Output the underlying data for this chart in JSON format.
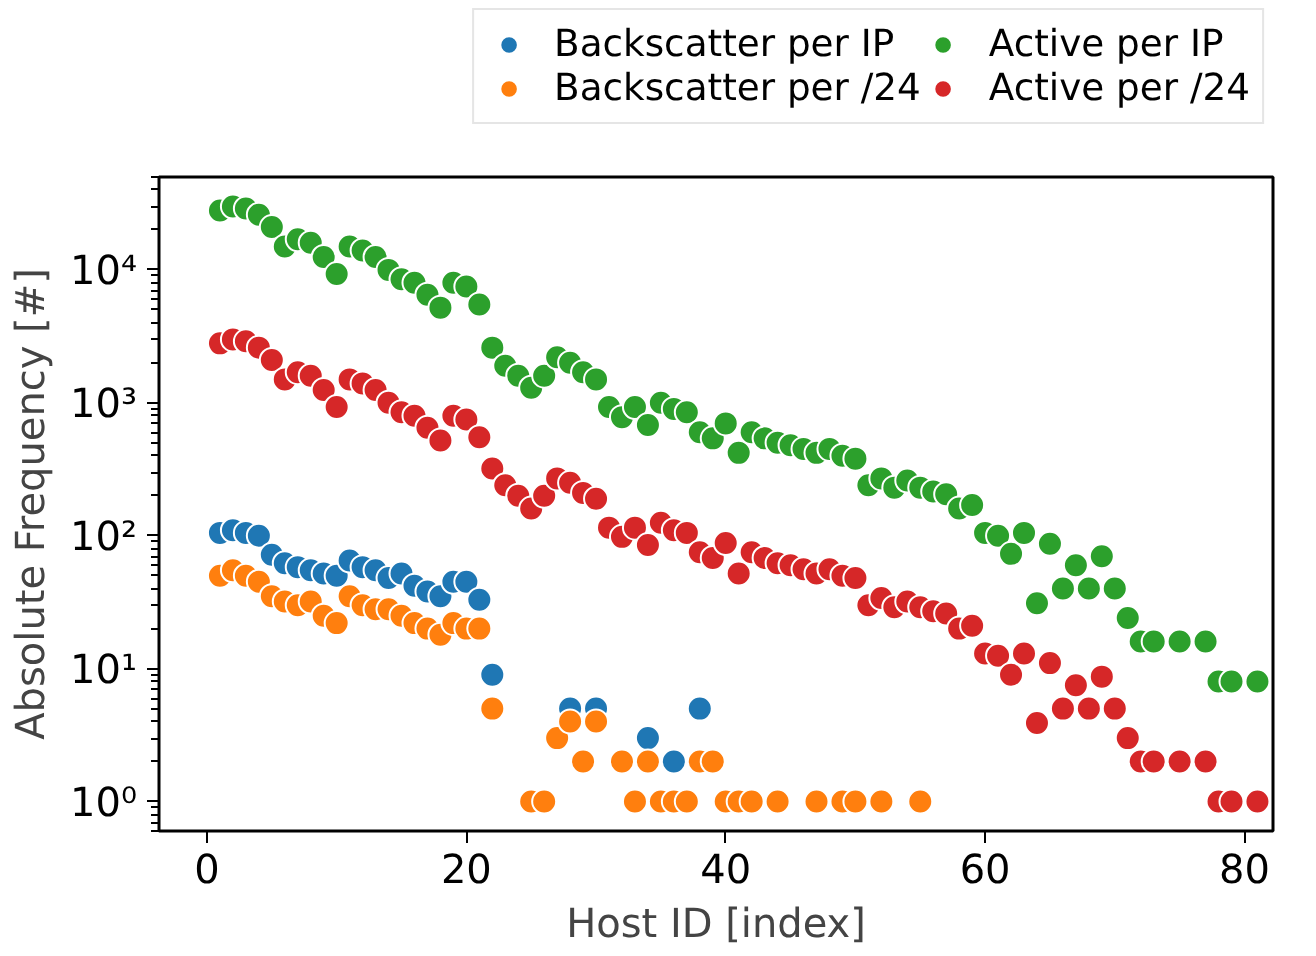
{
  "chart_data": {
    "type": "scatter",
    "xlabel": "Host ID [index]",
    "ylabel": "Absolute Frequency [#]",
    "log": "y",
    "xlim": [
      -3.7,
      82.2
    ],
    "xticks": [
      0,
      20,
      40,
      60,
      80
    ],
    "ylim": [
      0.6,
      50000
    ],
    "yticks": [
      {
        "value": 1,
        "label": "10⁰"
      },
      {
        "value": 10,
        "label": "10¹"
      },
      {
        "value": 100,
        "label": "10²"
      },
      {
        "value": 1000,
        "label": "10³"
      },
      {
        "value": 10000,
        "label": "10⁴"
      }
    ],
    "grid": false,
    "legend": "top",
    "marker": "circle",
    "series": [
      {
        "name": "Backscatter per IP",
        "color": "#1f77b4",
        "x": [
          1,
          2,
          3,
          4,
          5,
          6,
          7,
          8,
          9,
          10,
          11,
          12,
          13,
          14,
          15,
          16,
          17,
          18,
          19,
          20,
          21,
          22,
          27,
          28,
          29,
          30,
          34,
          35,
          36,
          38
        ],
        "values": [
          105,
          110,
          105,
          100,
          72,
          62,
          58,
          55,
          52,
          50,
          65,
          58,
          55,
          48,
          52,
          42,
          38,
          35,
          45,
          45,
          33,
          9,
          null,
          5,
          null,
          5,
          3,
          null,
          2,
          5
        ]
      },
      {
        "name": "Backscatter per /24",
        "color": "#ff7f0e",
        "x": [
          1,
          2,
          3,
          4,
          5,
          6,
          7,
          8,
          9,
          10,
          11,
          12,
          13,
          14,
          15,
          16,
          17,
          18,
          19,
          20,
          21,
          22,
          25,
          26,
          27,
          28,
          29,
          30,
          32,
          33,
          34,
          35,
          36,
          37,
          38,
          39,
          40,
          41,
          42,
          44,
          47,
          49,
          50,
          52,
          55
        ],
        "values": [
          50,
          55,
          50,
          45,
          35,
          32,
          30,
          32,
          25,
          22,
          35,
          30,
          28,
          28,
          25,
          22,
          20,
          18,
          22,
          20,
          20,
          5,
          1,
          1,
          3,
          4,
          2,
          4,
          2,
          1,
          2,
          1,
          1,
          1,
          2,
          2,
          1,
          1,
          1,
          1,
          1,
          1,
          1,
          1,
          1
        ]
      },
      {
        "name": "Active per IP",
        "color": "#2ca02c",
        "x": [
          1,
          2,
          3,
          4,
          5,
          6,
          7,
          8,
          9,
          10,
          11,
          12,
          13,
          14,
          15,
          16,
          17,
          18,
          19,
          20,
          21,
          22,
          23,
          24,
          25,
          26,
          27,
          28,
          29,
          30,
          31,
          32,
          33,
          34,
          35,
          36,
          37,
          38,
          39,
          40,
          41,
          42,
          43,
          44,
          45,
          46,
          47,
          48,
          49,
          50,
          51,
          52,
          53,
          54,
          55,
          56,
          57,
          58,
          59,
          60,
          61,
          62,
          63,
          64,
          65,
          66,
          67,
          68,
          69,
          70,
          71,
          72,
          73,
          75,
          77,
          78,
          79,
          81
        ],
        "values": [
          28000,
          30000,
          29000,
          26000,
          21000,
          15000,
          17000,
          16000,
          12500,
          9300,
          15000,
          14000,
          12500,
          10000,
          8500,
          8000,
          6500,
          5200,
          8000,
          7500,
          5500,
          2600,
          1900,
          1600,
          1300,
          1600,
          2200,
          2000,
          1700,
          1500,
          930,
          780,
          930,
          680,
          1000,
          900,
          850,
          600,
          540,
          700,
          420,
          600,
          540,
          500,
          480,
          450,
          420,
          450,
          400,
          380,
          240,
          270,
          230,
          260,
          230,
          215,
          205,
          160,
          170,
          105,
          100,
          73,
          105,
          31,
          87,
          40,
          60,
          40,
          70,
          40,
          24,
          16,
          16,
          16,
          16,
          8,
          8,
          8
        ]
      },
      {
        "name": "Active per /24",
        "color": "#d62728",
        "x": [
          1,
          2,
          3,
          4,
          5,
          6,
          7,
          8,
          9,
          10,
          11,
          12,
          13,
          14,
          15,
          16,
          17,
          18,
          19,
          20,
          21,
          22,
          23,
          24,
          25,
          26,
          27,
          28,
          29,
          30,
          31,
          32,
          33,
          34,
          35,
          36,
          37,
          38,
          39,
          40,
          41,
          42,
          43,
          44,
          45,
          46,
          47,
          48,
          49,
          50,
          51,
          52,
          53,
          54,
          55,
          56,
          57,
          58,
          59,
          60,
          61,
          62,
          63,
          64,
          65,
          66,
          67,
          68,
          69,
          70,
          71,
          72,
          73,
          75,
          77,
          78,
          79,
          81
        ],
        "values": [
          2800,
          3000,
          2900,
          2600,
          2100,
          1500,
          1700,
          1600,
          1250,
          930,
          1500,
          1400,
          1250,
          1000,
          850,
          800,
          650,
          520,
          800,
          750,
          550,
          320,
          240,
          200,
          160,
          200,
          270,
          250,
          210,
          190,
          115,
          98,
          115,
          85,
          125,
          110,
          105,
          75,
          68,
          88,
          52,
          75,
          68,
          62,
          60,
          56,
          52,
          56,
          50,
          48,
          30,
          34,
          29,
          32,
          29,
          27,
          26,
          20,
          21,
          13,
          12.5,
          9,
          13,
          3.9,
          11,
          5,
          7.5,
          5,
          8.7,
          5,
          3,
          2,
          2,
          2,
          2,
          1,
          1,
          1
        ]
      }
    ]
  }
}
